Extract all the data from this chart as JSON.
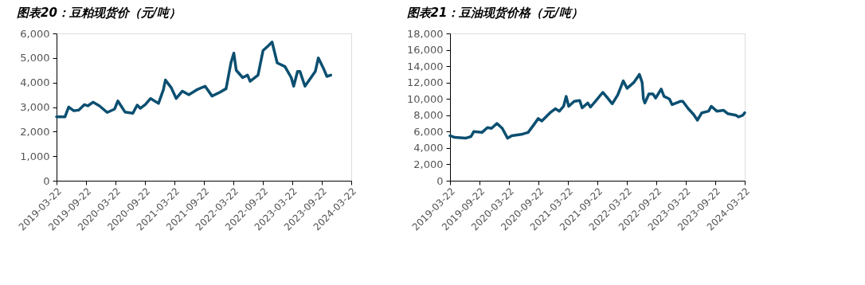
{
  "chart_data": [
    {
      "type": "line",
      "title": "图表20：豆粕现货价（元/吨）",
      "x": [
        "2019-03-22",
        "2019-05-13",
        "2019-06-05",
        "2019-07-07",
        "2019-08-07",
        "2019-09-10",
        "2019-10-02",
        "2019-11-03",
        "2019-12-13",
        "2020-01-30",
        "2020-03-16",
        "2020-04-05",
        "2020-05-19",
        "2020-07-07",
        "2020-08-03",
        "2020-08-22",
        "2020-09-22",
        "2020-10-25",
        "2020-12-13",
        "2021-01-12",
        "2021-01-25",
        "2021-03-01",
        "2021-04-02",
        "2021-05-10",
        "2021-06-19",
        "2021-08-06",
        "2021-09-28",
        "2021-11-10",
        "2021-12-28",
        "2022-02-05",
        "2022-03-07",
        "2022-03-25",
        "2022-04-09",
        "2022-05-19",
        "2022-06-18",
        "2022-07-04",
        "2022-08-22",
        "2022-09-22",
        "2022-10-25",
        "2022-11-17",
        "2022-12-19",
        "2023-02-05",
        "2023-03-16",
        "2023-03-31",
        "2023-04-24",
        "2023-05-09",
        "2023-06-09",
        "2023-08-12",
        "2023-08-31",
        "2023-09-30",
        "2023-10-23",
        "2023-11-16"
      ],
      "series": [
        {
          "color": "#0b4f71",
          "values": [
            2600,
            2600,
            3000,
            2850,
            2880,
            3100,
            3050,
            3200,
            3050,
            2780,
            2920,
            3250,
            2800,
            2750,
            3080,
            2950,
            3100,
            3350,
            3150,
            3700,
            4100,
            3800,
            3350,
            3650,
            3500,
            3700,
            3850,
            3450,
            3600,
            3750,
            4800,
            5200,
            4500,
            4200,
            4300,
            4050,
            4300,
            5300,
            5500,
            5650,
            4800,
            4650,
            4200,
            3850,
            4450,
            4450,
            3850,
            4450,
            5000,
            4600,
            4250,
            4300
          ]
        }
      ],
      "xlim": [
        "2019-03-22",
        "2024-03-22"
      ],
      "xticks": [
        "2019-03-22",
        "2019-09-22",
        "2020-03-22",
        "2020-09-22",
        "2021-03-22",
        "2021-09-22",
        "2022-03-22",
        "2022-09-22",
        "2023-03-22",
        "2023-09-22",
        "2024-03-22"
      ],
      "ylim": [
        0,
        6000
      ],
      "yticks": [
        0,
        {
          "value": 1000,
          "label": "1,000"
        },
        {
          "value": 2000,
          "label": "2,000"
        },
        {
          "value": 3000,
          "label": "3,000"
        },
        {
          "value": 4000,
          "label": "4,000"
        },
        {
          "value": 5000,
          "label": "5,000"
        },
        {
          "value": 6000,
          "label": "6,000"
        }
      ],
      "grid": false
    },
    {
      "type": "line",
      "title": "图表21：豆油现货价格（元/吨）",
      "x": [
        "2019-03-22",
        "2019-04-20",
        "2019-06-26",
        "2019-07-30",
        "2019-08-16",
        "2019-10-06",
        "2019-11-09",
        "2019-12-04",
        "2020-01-07",
        "2020-02-09",
        "2020-03-13",
        "2020-04-08",
        "2020-06-14",
        "2020-07-18",
        "2020-08-21",
        "2020-09-19",
        "2020-10-11",
        "2020-12-01",
        "2021-01-03",
        "2021-01-28",
        "2021-02-23",
        "2021-03-11",
        "2021-03-27",
        "2021-04-30",
        "2021-06-03",
        "2021-06-18",
        "2021-07-23",
        "2021-08-09",
        "2021-09-12",
        "2021-10-24",
        "2021-11-19",
        "2021-12-22",
        "2022-01-25",
        "2022-02-28",
        "2022-03-24",
        "2022-05-04",
        "2022-06-08",
        "2022-06-25",
        "2022-07-03",
        "2022-07-12",
        "2022-08-06",
        "2022-08-31",
        "2022-09-17",
        "2022-10-21",
        "2022-11-08",
        "2022-12-11",
        "2022-12-28",
        "2023-02-16",
        "2023-03-04",
        "2023-04-07",
        "2023-05-10",
        "2023-06-03",
        "2023-06-30",
        "2023-08-11",
        "2023-08-28",
        "2023-10-01",
        "2023-11-12",
        "2023-12-07",
        "2024-01-27",
        "2024-02-12",
        "2024-03-10",
        "2024-03-22"
      ],
      "series": [
        {
          "color": "#0b4f71",
          "values": [
            5500,
            5300,
            5200,
            5400,
            6000,
            5900,
            6500,
            6400,
            7000,
            6400,
            5200,
            5500,
            5700,
            5900,
            6800,
            7600,
            7300,
            8300,
            8800,
            8500,
            9100,
            10300,
            9100,
            9700,
            9800,
            8900,
            9500,
            9000,
            9800,
            10800,
            10200,
            9400,
            10500,
            12200,
            11300,
            12000,
            13000,
            12000,
            10000,
            9500,
            10600,
            10600,
            10100,
            11200,
            10300,
            10000,
            9300,
            9700,
            9700,
            8800,
            8100,
            7400,
            8300,
            8500,
            9100,
            8500,
            8600,
            8200,
            8000,
            7800,
            8000,
            8300
          ]
        }
      ],
      "xlim": [
        "2019-03-22",
        "2024-03-22"
      ],
      "xticks": [
        "2019-03-22",
        "2019-09-22",
        "2020-03-22",
        "2020-09-22",
        "2021-03-22",
        "2021-09-22",
        "2022-03-22",
        "2022-09-22",
        "2023-03-22",
        "2023-09-22",
        "2024-03-22"
      ],
      "ylim": [
        0,
        18000
      ],
      "yticks": [
        0,
        {
          "value": 2000,
          "label": "2,000"
        },
        {
          "value": 4000,
          "label": "4,000"
        },
        {
          "value": 6000,
          "label": "6,000"
        },
        {
          "value": 8000,
          "label": "8,000"
        },
        {
          "value": 10000,
          "label": "10,000"
        },
        {
          "value": 12000,
          "label": "12,000"
        },
        {
          "value": 14000,
          "label": "14,000"
        },
        {
          "value": 16000,
          "label": "16,000"
        },
        {
          "value": 18000,
          "label": "18,000"
        }
      ],
      "grid": false
    }
  ]
}
